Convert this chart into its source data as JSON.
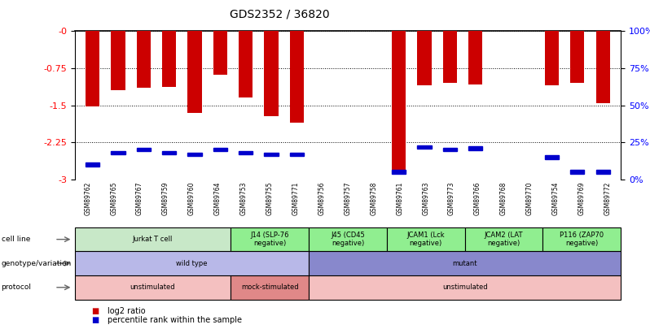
{
  "title": "GDS2352 / 36820",
  "samples": [
    "GSM89762",
    "GSM89765",
    "GSM89767",
    "GSM89759",
    "GSM89760",
    "GSM89764",
    "GSM89753",
    "GSM89755",
    "GSM89771",
    "GSM89756",
    "GSM89757",
    "GSM89758",
    "GSM89761",
    "GSM89763",
    "GSM89773",
    "GSM89766",
    "GSM89768",
    "GSM89770",
    "GSM89754",
    "GSM89769",
    "GSM89772"
  ],
  "log2_ratio": [
    -1.52,
    -1.2,
    -1.15,
    -1.12,
    -1.65,
    -0.88,
    -1.35,
    -1.72,
    -1.85,
    0.0,
    0.0,
    0.0,
    -2.87,
    -1.1,
    -1.05,
    -1.08,
    0.0,
    0.0,
    -1.1,
    -1.05,
    -1.45
  ],
  "percentile_rank": [
    10,
    18,
    20,
    18,
    17,
    20,
    18,
    17,
    17,
    0,
    0,
    0,
    5,
    22,
    20,
    21,
    0,
    0,
    15,
    5,
    5
  ],
  "bar_color": "#cc0000",
  "percentile_color": "#0000cc",
  "cell_line_groups": [
    {
      "label": "Jurkat T cell",
      "start": 0,
      "end": 5,
      "color": "#c8e8c8"
    },
    {
      "label": "J14 (SLP-76\nnegative)",
      "start": 6,
      "end": 8,
      "color": "#90ee90"
    },
    {
      "label": "J45 (CD45\nnegative)",
      "start": 9,
      "end": 11,
      "color": "#90ee90"
    },
    {
      "label": "JCAM1 (Lck\nnegative)",
      "start": 12,
      "end": 14,
      "color": "#90ee90"
    },
    {
      "label": "JCAM2 (LAT\nnegative)",
      "start": 15,
      "end": 17,
      "color": "#90ee90"
    },
    {
      "label": "P116 (ZAP70\nnegative)",
      "start": 18,
      "end": 20,
      "color": "#90ee90"
    }
  ],
  "genotype_groups": [
    {
      "label": "wild type",
      "start": 0,
      "end": 8,
      "color": "#b8b8e8"
    },
    {
      "label": "mutant",
      "start": 9,
      "end": 20,
      "color": "#8888cc"
    }
  ],
  "protocol_groups": [
    {
      "label": "unstimulated",
      "start": 0,
      "end": 5,
      "color": "#f4c0c0"
    },
    {
      "label": "mock-stimulated",
      "start": 6,
      "end": 8,
      "color": "#e08888"
    },
    {
      "label": "unstimulated",
      "start": 9,
      "end": 20,
      "color": "#f4c0c0"
    }
  ]
}
